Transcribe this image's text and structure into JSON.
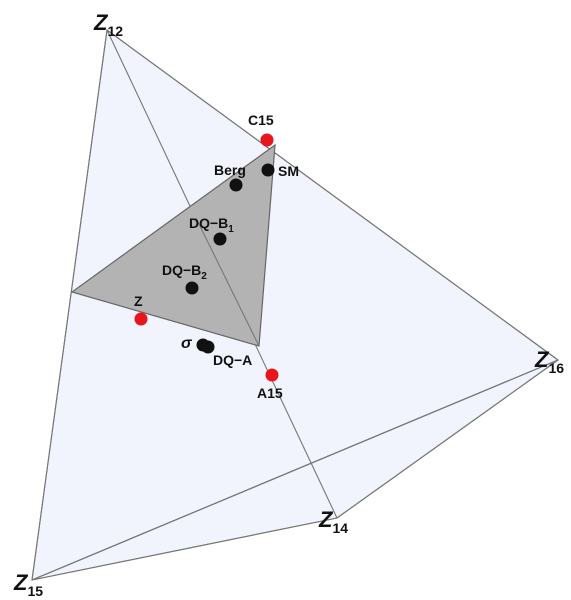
{
  "vertices": {
    "z12": {
      "main": "Z",
      "sub": "12"
    },
    "z14": {
      "main": "Z",
      "sub": "14"
    },
    "z15": {
      "main": "Z",
      "sub": "15"
    },
    "z16": {
      "main": "Z",
      "sub": "16"
    }
  },
  "points": {
    "c15": "C15",
    "berg": "Berg",
    "sm": "SM",
    "dqb1": {
      "main": "DQ−B",
      "sub": "1"
    },
    "dqb2": {
      "main": "DQ−B",
      "sub": "2"
    },
    "z": "Z",
    "sigma": "σ",
    "dqa": "DQ−A",
    "a15": "A15"
  },
  "colors": {
    "red_point": "#e8161b",
    "black_point": "#111111",
    "inner_triangle": "#b3b3b3",
    "outer_faces": "#eef2fb"
  }
}
